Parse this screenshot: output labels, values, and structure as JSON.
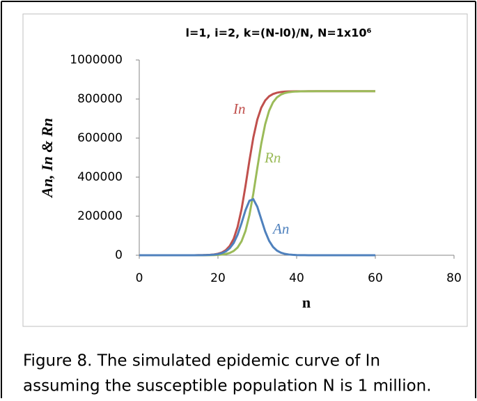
{
  "chart_data": {
    "type": "line",
    "title": "l=1, i=2, k=(N-l0)/N, N=1x10⁶",
    "x_label": "n",
    "y_label": "An, In & Rn",
    "x": [
      0,
      1,
      2,
      3,
      4,
      5,
      6,
      7,
      8,
      9,
      10,
      11,
      12,
      13,
      14,
      15,
      16,
      17,
      18,
      19,
      20,
      21,
      22,
      23,
      24,
      25,
      26,
      27,
      28,
      29,
      30,
      31,
      32,
      33,
      34,
      35,
      36,
      37,
      38,
      39,
      40,
      41,
      42,
      43,
      44,
      45,
      46,
      47,
      48,
      49,
      50,
      51,
      52,
      53,
      54,
      55,
      56,
      57,
      58,
      59,
      60
    ],
    "series": [
      {
        "name": "In",
        "color": "#c0504d",
        "values": [
          0,
          0,
          0,
          0,
          0,
          1,
          1,
          2,
          4,
          8,
          15,
          28,
          52,
          98,
          181,
          341,
          633,
          1188,
          2205,
          4135,
          7650,
          14240,
          26090,
          47700,
          84500,
          145600,
          235900,
          355000,
          485000,
          603900,
          694400,
          755400,
          792400,
          813900,
          825800,
          832300,
          835900,
          837800,
          838800,
          839400,
          839700,
          839800,
          839900,
          840000,
          840000,
          840000,
          840000,
          840000,
          840000,
          840000,
          840000,
          840000,
          840000,
          840000,
          840000,
          840000,
          840000,
          840000,
          840000,
          840000,
          840000
        ]
      },
      {
        "name": "Rn",
        "color": "#9bbb59",
        "values": [
          0,
          0,
          0,
          0,
          0,
          0,
          1,
          1,
          1,
          2,
          4,
          7,
          12,
          23,
          43,
          81,
          151,
          282,
          526,
          982,
          1834,
          3418,
          6370,
          11810,
          21810,
          39830,
          71480,
          124350,
          205900,
          317100,
          446200,
          570600,
          670500,
          739900,
          783300,
          808600,
          822900,
          830800,
          835000,
          837300,
          838600,
          839200,
          839600,
          839800,
          839900,
          840000,
          840000,
          840000,
          840000,
          840000,
          840000,
          840000,
          840000,
          840000,
          840000,
          840000,
          840000,
          840000,
          840000,
          840000,
          840000
        ]
      },
      {
        "name": "An",
        "color": "#4f81bd",
        "values": [
          0,
          0,
          0,
          0,
          0,
          1,
          0,
          1,
          3,
          6,
          11,
          21,
          40,
          75,
          138,
          260,
          482,
          906,
          1679,
          3153,
          5816,
          10822,
          19720,
          35890,
          62690,
          105770,
          164420,
          230650,
          279100,
          286800,
          248200,
          184800,
          121900,
          74000,
          42500,
          23700,
          13000,
          7000,
          3800,
          2100,
          1100,
          600,
          300,
          100,
          0,
          0,
          0,
          0,
          0,
          0,
          0,
          0,
          0,
          0,
          0,
          0,
          0,
          0,
          0,
          0,
          0
        ]
      }
    ],
    "xlim": [
      0,
      80
    ],
    "xticks": [
      0,
      20,
      40,
      60,
      80
    ],
    "ylim": [
      0,
      1000000
    ],
    "yticks": [
      0,
      200000,
      400000,
      600000,
      800000,
      1000000
    ],
    "caption": [
      "Figure 8. The simulated epidemic curve of In",
      "assuming the susceptible population N is 1 million."
    ]
  }
}
